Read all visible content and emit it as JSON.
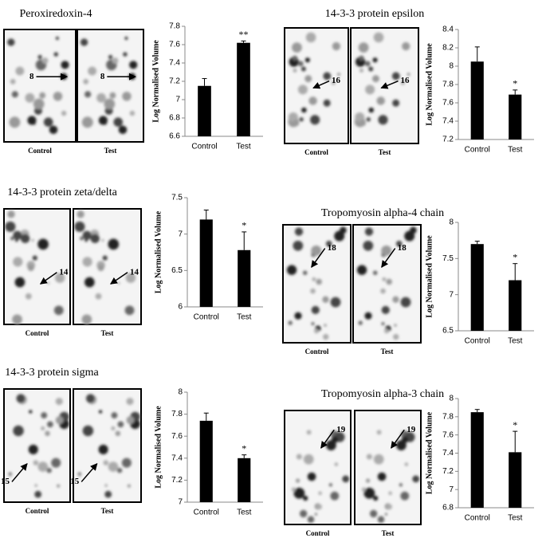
{
  "chart_data": [
    {
      "type": "bar",
      "title": "Peroxiredoxin-4",
      "gel_labels": [
        "Control",
        "Test"
      ],
      "spot": "8",
      "y_label": "Log Normalised Volume",
      "categories": [
        "Control",
        "Test"
      ],
      "values": [
        7.15,
        7.62
      ],
      "errors": [
        0.08,
        0.02
      ],
      "annotation": "**",
      "ylim": [
        6.6,
        7.8
      ],
      "yticks": [
        6.6,
        6.8,
        7,
        7.2,
        7.4,
        7.6,
        7.8
      ],
      "color": "#000000"
    },
    {
      "type": "bar",
      "title": "14-3-3 protein epsilon",
      "gel_labels": [
        "Control",
        "Test"
      ],
      "spot": "16",
      "y_label": "Log Normalised Volume",
      "categories": [
        "Control",
        "Test"
      ],
      "values": [
        8.05,
        7.69
      ],
      "errors": [
        0.16,
        0.05
      ],
      "annotation": "*",
      "ylim": [
        7.2,
        8.4
      ],
      "yticks": [
        7.2,
        7.4,
        7.6,
        7.8,
        8,
        8.2,
        8.4
      ],
      "color": "#000000"
    },
    {
      "type": "bar",
      "title": "14-3-3 protein zeta/delta",
      "gel_labels": [
        "Control",
        "Test"
      ],
      "spot": "14",
      "y_label": "Log Normalised Volume",
      "categories": [
        "Control",
        "Test"
      ],
      "values": [
        7.2,
        6.78
      ],
      "errors": [
        0.13,
        0.25
      ],
      "annotation": "*",
      "ylim": [
        6,
        7.5
      ],
      "yticks": [
        6,
        6.5,
        7,
        7.5
      ],
      "color": "#000000"
    },
    {
      "type": "bar",
      "title": "Tropomyosin alpha-4 chain",
      "gel_labels": [
        "Control",
        "Test"
      ],
      "spot": "18",
      "y_label": "Log Normalised Volume",
      "categories": [
        "Control",
        "Test"
      ],
      "values": [
        7.7,
        7.2
      ],
      "errors": [
        0.04,
        0.23
      ],
      "annotation": "*",
      "ylim": [
        6.5,
        8
      ],
      "yticks": [
        6.5,
        7,
        7.5,
        8
      ],
      "color": "#000000"
    },
    {
      "type": "bar",
      "title": "14-3-3 protein sigma",
      "gel_labels": [
        "Control",
        "Test"
      ],
      "spot": "15",
      "y_label": "Log Normalised Volume",
      "categories": [
        "Control",
        "Test"
      ],
      "values": [
        7.74,
        7.4
      ],
      "errors": [
        0.07,
        0.03
      ],
      "annotation": "*",
      "ylim": [
        7,
        8
      ],
      "yticks": [
        7,
        7.2,
        7.4,
        7.6,
        7.8,
        8
      ],
      "color": "#000000"
    },
    {
      "type": "bar",
      "title": "Tropomyosin alpha-3 chain",
      "gel_labels": [
        "Control",
        "Test"
      ],
      "spot": "19",
      "y_label": "Log Normalised Volume",
      "categories": [
        "Control",
        "Test"
      ],
      "values": [
        7.85,
        7.41
      ],
      "errors": [
        0.03,
        0.23
      ],
      "annotation": "*",
      "ylim": [
        6.8,
        8
      ],
      "yticks": [
        6.8,
        7,
        7.2,
        7.4,
        7.6,
        7.8,
        8
      ],
      "color": "#000000"
    }
  ]
}
